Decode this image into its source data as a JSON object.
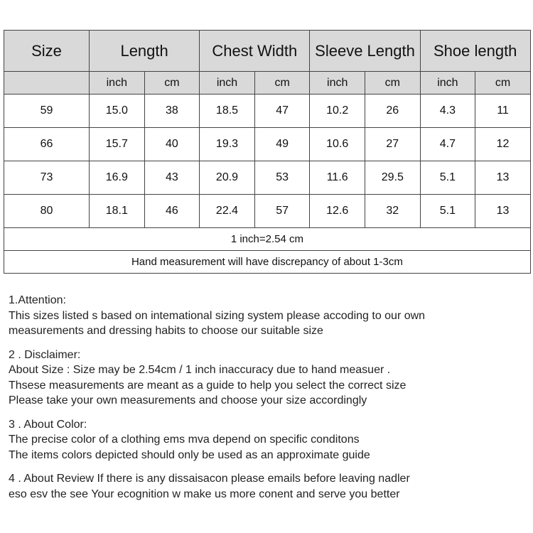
{
  "table": {
    "headers": [
      "Size",
      "Length",
      "Chest Width",
      "Sleeve Length",
      "Shoe length"
    ],
    "units": [
      "inch",
      "cm",
      "inch",
      "cm",
      "inch",
      "cm",
      "inch",
      "cm"
    ],
    "rows": [
      [
        "59",
        "15.0",
        "38",
        "18.5",
        "47",
        "10.2",
        "26",
        "4.3",
        "11"
      ],
      [
        "66",
        "15.7",
        "40",
        "19.3",
        "49",
        "10.6",
        "27",
        "4.7",
        "12"
      ],
      [
        "73",
        "16.9",
        "43",
        "20.9",
        "53",
        "11.6",
        "29.5",
        "5.1",
        "13"
      ],
      [
        "80",
        "18.1",
        "46",
        "22.4",
        "57",
        "12.6",
        "32",
        "5.1",
        "13"
      ]
    ],
    "conversion": "1 inch=2.54 cm",
    "note": "Hand measurement will have discrepancy of about 1-3cm"
  },
  "notes": [
    {
      "title": "1.Attention:",
      "lines": [
        "This sizes listed s based on intemational sizing system please accoding to our own",
        "measurements and dressing habits to choose our suitable size"
      ]
    },
    {
      "title": "2 . Disclaimer:",
      "lines": [
        "About Size : Size may be 2.54cm / 1 inch inaccuracy due to hand measuer .",
        "Thsese  measurements are meant as a guide to help you select the correct size",
        "Please take your own measurements and choose your size accordingly"
      ]
    },
    {
      "title": "3 . About Color:",
      "lines": [
        "The precise color of a clothing ems mva depend on specific conditons",
        "The items colors depicted should only be used as an approximate guide"
      ]
    },
    {
      "title": "4 . About Review If there is any dissaisacon please emails before leaving nadler",
      "lines": [
        "eso esv the see Your ecognition w make us more conent and serve you better"
      ]
    }
  ]
}
